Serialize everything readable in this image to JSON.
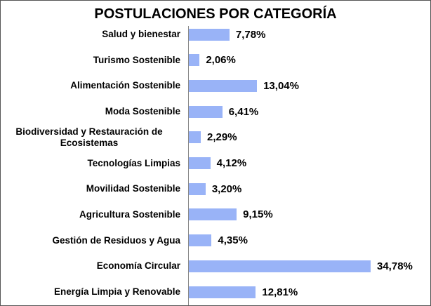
{
  "chart_data": {
    "type": "bar",
    "orientation": "horizontal",
    "title": "POSTULACIONES POR CATEGORÍA",
    "categories": [
      "Salud y bienestar",
      "Turismo Sostenible",
      "Alimentación Sostenible",
      "Moda Sostenible",
      "Biodiversidad y Restauración de Ecosistemas",
      "Tecnologías Limpias",
      "Movilidad Sostenible",
      "Agricultura Sostenible",
      "Gestión de Residuos y Agua",
      "Economía Circular",
      "Energía Limpia y Renovable"
    ],
    "values": [
      7.78,
      2.06,
      13.04,
      6.41,
      2.29,
      4.12,
      3.2,
      9.15,
      4.35,
      34.78,
      12.81
    ],
    "value_labels": [
      "7,78%",
      "2,06%",
      "13,04%",
      "6,41%",
      "2,29%",
      "4,12%",
      "3,20%",
      "9,15%",
      "4,35%",
      "34,78%",
      "12,81%"
    ],
    "color": "#99b3f7"
  }
}
